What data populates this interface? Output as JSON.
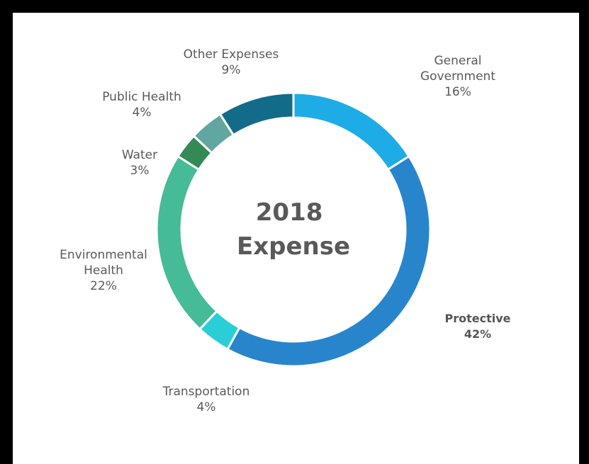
{
  "chart_data": {
    "type": "pie",
    "title": "2018 Expense",
    "title_lines": [
      "2018",
      "Expense"
    ],
    "donut": true,
    "start_angle_deg": 0,
    "direction": "clockwise",
    "slices": [
      {
        "name": "General Government",
        "label_lines": [
          "General",
          "Government"
        ],
        "value": 16,
        "value_label": "16%",
        "color": "#1EACE6",
        "bold": false
      },
      {
        "name": "Protective",
        "label_lines": [
          "Protective"
        ],
        "value": 42,
        "value_label": "42%",
        "color": "#2885CC",
        "bold": true
      },
      {
        "name": "Transportation",
        "label_lines": [
          "Transportation"
        ],
        "value": 4,
        "value_label": "4%",
        "color": "#2ACFD6",
        "bold": false
      },
      {
        "name": "Environmental Health",
        "label_lines": [
          "Environmental",
          "Health"
        ],
        "value": 22,
        "value_label": "22%",
        "color": "#45BB97",
        "bold": false
      },
      {
        "name": "Water",
        "label_lines": [
          "Water"
        ],
        "value": 3,
        "value_label": "3%",
        "color": "#338A55",
        "bold": false
      },
      {
        "name": "Public Health",
        "label_lines": [
          "Public Health"
        ],
        "value": 4,
        "value_label": "4%",
        "color": "#62A6A1",
        "bold": false
      },
      {
        "name": "Other Expenses",
        "label_lines": [
          "Other Expenses"
        ],
        "value": 9,
        "value_label": "9%",
        "color": "#136B8A",
        "bold": false
      }
    ]
  }
}
